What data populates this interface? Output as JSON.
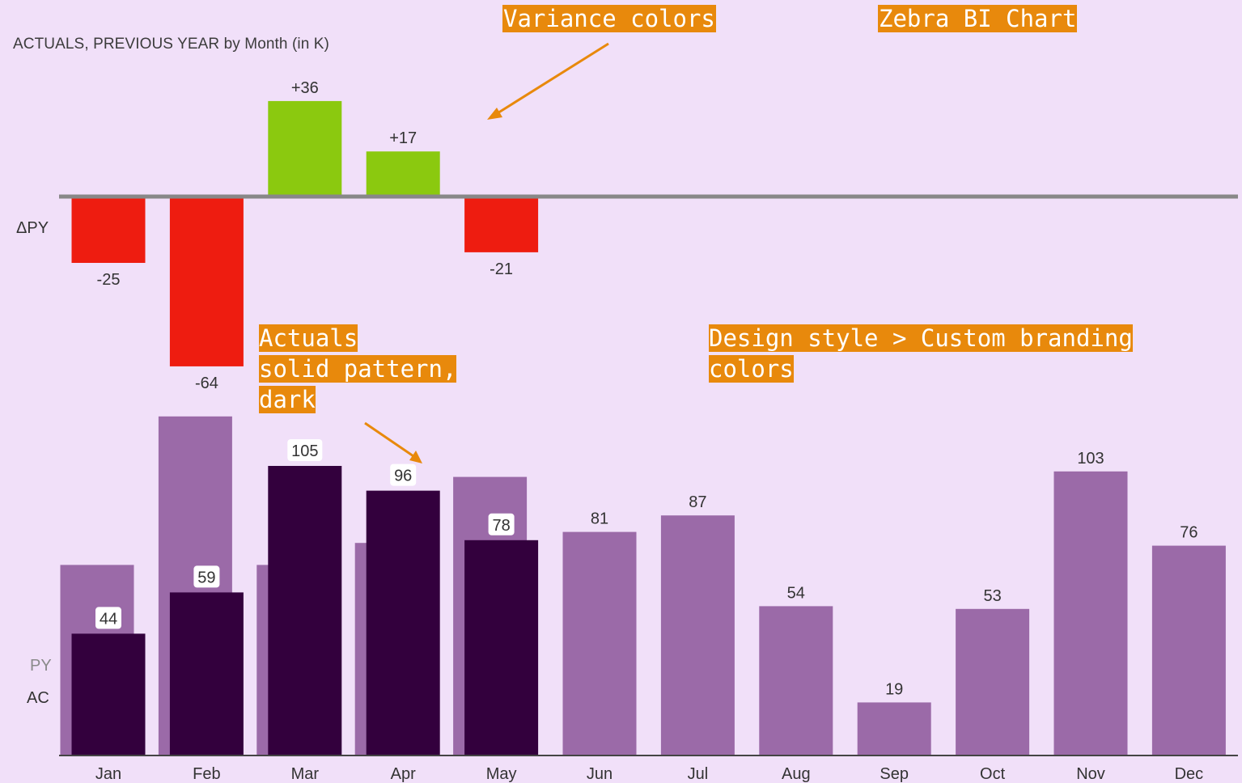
{
  "chart_data": {
    "type": "bar",
    "title": "ACTUALS, PREVIOUS YEAR by Month (in K)",
    "categories": [
      "Jan",
      "Feb",
      "Mar",
      "Apr",
      "May",
      "Jun",
      "Jul",
      "Aug",
      "Sep",
      "Oct",
      "Nov",
      "Dec"
    ],
    "series": [
      {
        "name": "AC",
        "values": [
          44,
          59,
          105,
          96,
          78,
          null,
          null,
          null,
          null,
          null,
          null,
          null
        ],
        "color": "#33003d"
      },
      {
        "name": "PY",
        "values": [
          69,
          123,
          69,
          77,
          101,
          81,
          87,
          54,
          19,
          53,
          103,
          76
        ],
        "color": "#9b6aa8"
      },
      {
        "name": "ΔPY",
        "values": [
          -25,
          -64,
          36,
          17,
          -21,
          null,
          null,
          null,
          null,
          null,
          null,
          null
        ]
      }
    ],
    "bar_labels": [
      "44",
      "59",
      "105",
      "96",
      "78",
      "81",
      "87",
      "54",
      "19",
      "53",
      "103",
      "76"
    ],
    "variance_labels": [
      "-25",
      "-64",
      "+36",
      "+17",
      "-21"
    ],
    "row_labels": {
      "delta": "ΔPY",
      "py": "PY",
      "ac": "AC"
    },
    "colors": {
      "background": "#f1e0f9",
      "positive": "#8bc90f",
      "negative": "#ee1c10",
      "actual": "#33003d",
      "previous_year": "#9b6aa8",
      "axis": "#888888",
      "annotation": "#e8890c"
    },
    "grid": false
  },
  "annotations": {
    "variance_colors": "Variance colors",
    "zebra_bi": "Zebra BI Chart",
    "actuals": [
      "Actuals",
      "solid pattern,",
      "dark"
    ],
    "design_style": [
      "Design style > Custom branding",
      "colors"
    ]
  }
}
